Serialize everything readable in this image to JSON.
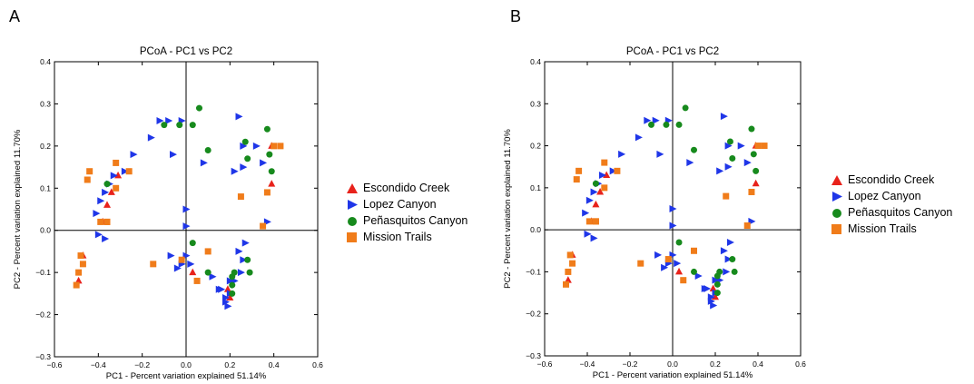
{
  "panels": [
    {
      "letter": "A"
    },
    {
      "letter": "B"
    }
  ],
  "legend_entries": [
    {
      "name": "Escondido Creek",
      "marker": "triangle-up",
      "color": "#e8221b"
    },
    {
      "name": "Lopez Canyon",
      "marker": "triangle-right",
      "color": "#1f36e8"
    },
    {
      "name": "Peñasquitos Canyon",
      "marker": "circle",
      "color": "#178a1d"
    },
    {
      "name": "Mission Trails",
      "marker": "square",
      "color": "#f07c1a"
    }
  ],
  "chart_data": [
    {
      "type": "scatter",
      "title": "PCoA - PC1 vs PC2",
      "xlabel": "PC1 - Percent variation explained 51.14%",
      "ylabel": "PC2 - Percent variation explained 11.70%",
      "xlim": [
        -0.6,
        0.6
      ],
      "ylim": [
        -0.3,
        0.4
      ],
      "xticks": [
        -0.6,
        -0.4,
        -0.2,
        0.0,
        0.2,
        0.4,
        0.6
      ],
      "yticks": [
        -0.3,
        -0.2,
        -0.1,
        0.0,
        0.1,
        0.2,
        0.3,
        0.4
      ],
      "xtick_labels": [
        "−0.6",
        "−0.4",
        "−0.2",
        "0.0",
        "0.2",
        "0.4",
        "0.6"
      ],
      "ytick_labels": [
        "−0.3",
        "−0.2",
        "−0.1",
        "0.0",
        "0.1",
        "0.2",
        "0.3",
        "0.4"
      ],
      "zero_lines": true,
      "series": [
        {
          "name": "Escondido Creek",
          "points": [
            [
              -0.36,
              0.06
            ],
            [
              -0.34,
              0.09
            ],
            [
              -0.31,
              0.13
            ],
            [
              -0.47,
              -0.06
            ],
            [
              -0.49,
              -0.12
            ],
            [
              0.03,
              -0.1
            ],
            [
              0.19,
              -0.14
            ],
            [
              0.2,
              -0.16
            ],
            [
              0.39,
              0.11
            ],
            [
              0.39,
              0.2
            ],
            [
              -0.38,
              0.02
            ]
          ]
        },
        {
          "name": "Lopez Canyon",
          "points": [
            [
              -0.41,
              0.04
            ],
            [
              -0.39,
              0.07
            ],
            [
              -0.37,
              0.09
            ],
            [
              -0.35,
              0.11
            ],
            [
              -0.33,
              0.13
            ],
            [
              -0.28,
              0.14
            ],
            [
              -0.24,
              0.18
            ],
            [
              -0.16,
              0.22
            ],
            [
              -0.12,
              0.26
            ],
            [
              -0.08,
              0.26
            ],
            [
              -0.06,
              0.18
            ],
            [
              -0.02,
              0.26
            ],
            [
              0.0,
              0.05
            ],
            [
              0.0,
              0.01
            ],
            [
              0.08,
              0.16
            ],
            [
              0.24,
              0.27
            ],
            [
              0.26,
              0.2
            ],
            [
              0.26,
              0.15
            ],
            [
              0.22,
              0.14
            ],
            [
              0.35,
              0.16
            ],
            [
              0.32,
              0.2
            ],
            [
              0.37,
              0.02
            ],
            [
              -0.4,
              -0.01
            ],
            [
              -0.37,
              -0.02
            ],
            [
              -0.07,
              -0.06
            ],
            [
              -0.04,
              -0.09
            ],
            [
              -0.02,
              -0.08
            ],
            [
              0.0,
              -0.06
            ],
            [
              0.02,
              -0.08
            ],
            [
              0.12,
              -0.11
            ],
            [
              0.2,
              -0.12
            ],
            [
              0.22,
              -0.12
            ],
            [
              0.25,
              -0.1
            ],
            [
              0.26,
              -0.07
            ],
            [
              0.24,
              -0.05
            ],
            [
              0.27,
              -0.03
            ],
            [
              0.16,
              -0.14
            ],
            [
              0.18,
              -0.17
            ],
            [
              0.19,
              -0.18
            ],
            [
              0.2,
              -0.15
            ],
            [
              0.18,
              -0.16
            ],
            [
              0.15,
              -0.14
            ]
          ]
        },
        {
          "name": "Peñasquitos Canyon",
          "points": [
            [
              -0.36,
              0.11
            ],
            [
              -0.1,
              0.25
            ],
            [
              -0.03,
              0.25
            ],
            [
              0.03,
              0.25
            ],
            [
              0.06,
              0.29
            ],
            [
              0.1,
              0.19
            ],
            [
              0.27,
              0.21
            ],
            [
              0.28,
              0.17
            ],
            [
              0.37,
              0.24
            ],
            [
              0.39,
              0.14
            ],
            [
              0.38,
              0.18
            ],
            [
              0.03,
              -0.03
            ],
            [
              0.21,
              -0.11
            ],
            [
              0.22,
              -0.1
            ],
            [
              0.21,
              -0.13
            ],
            [
              0.28,
              -0.07
            ],
            [
              0.29,
              -0.1
            ],
            [
              0.21,
              -0.15
            ],
            [
              0.1,
              -0.1
            ]
          ]
        },
        {
          "name": "Mission Trails",
          "points": [
            [
              -0.32,
              0.16
            ],
            [
              -0.26,
              0.14
            ],
            [
              -0.32,
              0.1
            ],
            [
              -0.39,
              0.02
            ],
            [
              -0.36,
              0.02
            ],
            [
              -0.44,
              0.14
            ],
            [
              -0.45,
              0.12
            ],
            [
              -0.48,
              -0.06
            ],
            [
              -0.47,
              -0.08
            ],
            [
              -0.49,
              -0.1
            ],
            [
              -0.5,
              -0.13
            ],
            [
              -0.15,
              -0.08
            ],
            [
              -0.02,
              -0.07
            ],
            [
              0.05,
              -0.12
            ],
            [
              0.1,
              -0.05
            ],
            [
              0.25,
              0.08
            ],
            [
              0.37,
              0.09
            ],
            [
              0.35,
              0.01
            ],
            [
              0.43,
              0.2
            ],
            [
              0.4,
              0.2
            ],
            [
              -0.36,
              0.02
            ]
          ]
        }
      ]
    },
    {
      "type": "scatter",
      "title": "PCoA - PC1 vs PC2",
      "xlabel": "PC1 - Percent variation explained 51.14%",
      "ylabel": "PC2 - Percent variation explained 11.70%",
      "xlim": [
        -0.6,
        0.6
      ],
      "ylim": [
        -0.3,
        0.4
      ],
      "xticks": [
        -0.6,
        -0.4,
        -0.2,
        0.0,
        0.2,
        0.4,
        0.6
      ],
      "yticks": [
        -0.3,
        -0.2,
        -0.1,
        0.0,
        0.1,
        0.2,
        0.3,
        0.4
      ],
      "xtick_labels": [
        "−0.6",
        "−0.4",
        "−0.2",
        "0.0",
        "0.2",
        "0.4",
        "0.6"
      ],
      "ytick_labels": [
        "−0.3",
        "−0.2",
        "−0.1",
        "0.0",
        "0.1",
        "0.2",
        "0.3",
        "0.4"
      ],
      "zero_lines": true,
      "series": [
        {
          "name": "Escondido Creek",
          "points": [
            [
              -0.36,
              0.06
            ],
            [
              -0.34,
              0.09
            ],
            [
              -0.31,
              0.13
            ],
            [
              -0.47,
              -0.06
            ],
            [
              -0.49,
              -0.12
            ],
            [
              0.03,
              -0.1
            ],
            [
              0.19,
              -0.14
            ],
            [
              0.2,
              -0.16
            ],
            [
              0.39,
              0.11
            ],
            [
              0.39,
              0.2
            ],
            [
              -0.38,
              0.02
            ]
          ]
        },
        {
          "name": "Lopez Canyon",
          "points": [
            [
              -0.41,
              0.04
            ],
            [
              -0.39,
              0.07
            ],
            [
              -0.37,
              0.09
            ],
            [
              -0.35,
              0.11
            ],
            [
              -0.33,
              0.13
            ],
            [
              -0.28,
              0.14
            ],
            [
              -0.24,
              0.18
            ],
            [
              -0.16,
              0.22
            ],
            [
              -0.12,
              0.26
            ],
            [
              -0.08,
              0.26
            ],
            [
              -0.06,
              0.18
            ],
            [
              -0.02,
              0.26
            ],
            [
              0.0,
              0.05
            ],
            [
              0.0,
              0.01
            ],
            [
              0.08,
              0.16
            ],
            [
              0.24,
              0.27
            ],
            [
              0.26,
              0.2
            ],
            [
              0.26,
              0.15
            ],
            [
              0.22,
              0.14
            ],
            [
              0.35,
              0.16
            ],
            [
              0.32,
              0.2
            ],
            [
              0.37,
              0.02
            ],
            [
              -0.4,
              -0.01
            ],
            [
              -0.37,
              -0.02
            ],
            [
              -0.07,
              -0.06
            ],
            [
              -0.04,
              -0.09
            ],
            [
              -0.02,
              -0.08
            ],
            [
              0.0,
              -0.06
            ],
            [
              0.02,
              -0.08
            ],
            [
              0.12,
              -0.11
            ],
            [
              0.2,
              -0.12
            ],
            [
              0.22,
              -0.12
            ],
            [
              0.25,
              -0.1
            ],
            [
              0.26,
              -0.07
            ],
            [
              0.24,
              -0.05
            ],
            [
              0.27,
              -0.03
            ],
            [
              0.16,
              -0.14
            ],
            [
              0.18,
              -0.17
            ],
            [
              0.19,
              -0.18
            ],
            [
              0.2,
              -0.15
            ],
            [
              0.18,
              -0.16
            ],
            [
              0.15,
              -0.14
            ]
          ]
        },
        {
          "name": "Peñasquitos Canyon",
          "points": [
            [
              -0.36,
              0.11
            ],
            [
              -0.1,
              0.25
            ],
            [
              -0.03,
              0.25
            ],
            [
              0.03,
              0.25
            ],
            [
              0.06,
              0.29
            ],
            [
              0.1,
              0.19
            ],
            [
              0.27,
              0.21
            ],
            [
              0.28,
              0.17
            ],
            [
              0.37,
              0.24
            ],
            [
              0.39,
              0.14
            ],
            [
              0.38,
              0.18
            ],
            [
              0.03,
              -0.03
            ],
            [
              0.21,
              -0.11
            ],
            [
              0.22,
              -0.1
            ],
            [
              0.21,
              -0.13
            ],
            [
              0.28,
              -0.07
            ],
            [
              0.29,
              -0.1
            ],
            [
              0.21,
              -0.15
            ],
            [
              0.1,
              -0.1
            ]
          ]
        },
        {
          "name": "Mission Trails",
          "points": [
            [
              -0.32,
              0.16
            ],
            [
              -0.26,
              0.14
            ],
            [
              -0.32,
              0.1
            ],
            [
              -0.39,
              0.02
            ],
            [
              -0.36,
              0.02
            ],
            [
              -0.44,
              0.14
            ],
            [
              -0.45,
              0.12
            ],
            [
              -0.48,
              -0.06
            ],
            [
              -0.47,
              -0.08
            ],
            [
              -0.49,
              -0.1
            ],
            [
              -0.5,
              -0.13
            ],
            [
              -0.15,
              -0.08
            ],
            [
              -0.02,
              -0.07
            ],
            [
              0.05,
              -0.12
            ],
            [
              0.1,
              -0.05
            ],
            [
              0.25,
              0.08
            ],
            [
              0.37,
              0.09
            ],
            [
              0.35,
              0.01
            ],
            [
              0.43,
              0.2
            ],
            [
              0.4,
              0.2
            ],
            [
              -0.36,
              0.02
            ]
          ]
        }
      ]
    }
  ]
}
